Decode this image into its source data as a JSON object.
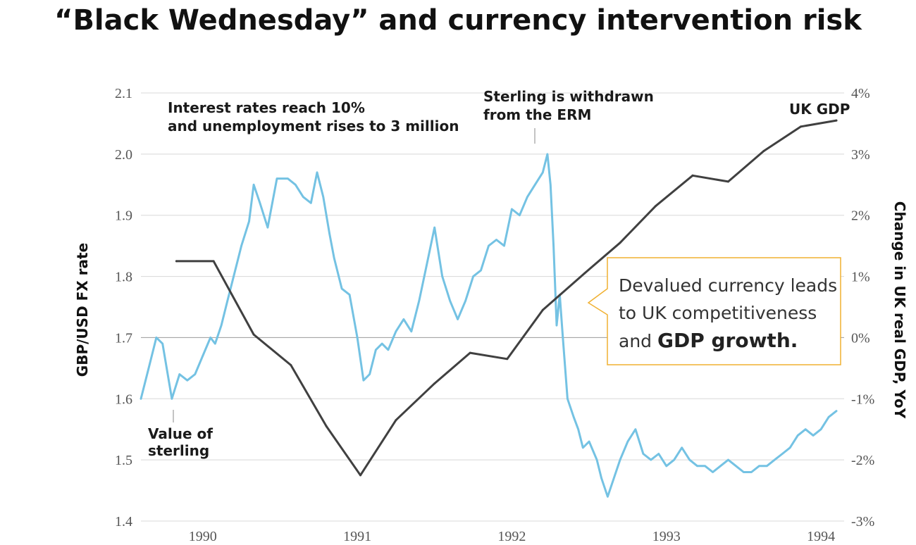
{
  "title": "“Black Wednesday” and currency intervention risk",
  "colors": {
    "fx_line": "#74c2e3",
    "gdp_line": "#404040",
    "callout_border": "#f0b030",
    "grid": "#d8d8d8",
    "zero_line": "#999999"
  },
  "annotations": {
    "interest": [
      "Interest rates reach 10%",
      "and unemployment rises to 3 million"
    ],
    "erm": [
      "Sterling is withdrawn",
      "from the ERM"
    ],
    "sterling": [
      "Value of",
      "sterling"
    ],
    "gdp_label": "UK GDP"
  },
  "callout": {
    "line1": "Devalued currency leads",
    "line2": "to UK competitiveness",
    "line3_prefix": "and ",
    "line3_bold": "GDP growth."
  },
  "chart_data": {
    "type": "line",
    "xlabel": "",
    "x_ticks": [
      "1990",
      "1991",
      "1992",
      "1993",
      "1994"
    ],
    "x_range": [
      1989.6,
      1994.15
    ],
    "left_axis": {
      "label": "GBP/USD FX rate",
      "ylim": [
        1.4,
        2.1
      ],
      "ticks": [
        "1.4",
        "1.5",
        "1.6",
        "1.7",
        "1.8",
        "1.9",
        "2.0",
        "2.1"
      ]
    },
    "right_axis": {
      "label": "Change in UK real GDP, YoY",
      "ylim": [
        -3,
        4
      ],
      "ticks": [
        "-3%",
        "-2%",
        "-1%",
        "0%",
        "1%",
        "2%",
        "3%",
        "4%"
      ]
    },
    "series": [
      {
        "axis": "left",
        "points": [
          [
            1989.6,
            1.6
          ],
          [
            1989.65,
            1.65
          ],
          [
            1989.7,
            1.7
          ],
          [
            1989.74,
            1.69
          ],
          [
            1989.78,
            1.63
          ],
          [
            1989.8,
            1.6
          ],
          [
            1989.85,
            1.64
          ],
          [
            1989.9,
            1.63
          ],
          [
            1989.95,
            1.64
          ],
          [
            1990.0,
            1.67
          ],
          [
            1990.05,
            1.7
          ],
          [
            1990.08,
            1.69
          ],
          [
            1990.12,
            1.72
          ],
          [
            1990.16,
            1.76
          ],
          [
            1990.22,
            1.82
          ],
          [
            1990.25,
            1.85
          ],
          [
            1990.3,
            1.89
          ],
          [
            1990.33,
            1.95
          ],
          [
            1990.37,
            1.92
          ],
          [
            1990.42,
            1.88
          ],
          [
            1990.48,
            1.96
          ],
          [
            1990.55,
            1.96
          ],
          [
            1990.6,
            1.95
          ],
          [
            1990.65,
            1.93
          ],
          [
            1990.7,
            1.92
          ],
          [
            1990.74,
            1.97
          ],
          [
            1990.78,
            1.93
          ],
          [
            1990.82,
            1.87
          ],
          [
            1990.85,
            1.83
          ],
          [
            1990.9,
            1.78
          ],
          [
            1990.95,
            1.77
          ],
          [
            1991.0,
            1.7
          ],
          [
            1991.04,
            1.63
          ],
          [
            1991.08,
            1.64
          ],
          [
            1991.12,
            1.68
          ],
          [
            1991.16,
            1.69
          ],
          [
            1991.2,
            1.68
          ],
          [
            1991.25,
            1.71
          ],
          [
            1991.3,
            1.73
          ],
          [
            1991.35,
            1.71
          ],
          [
            1991.4,
            1.76
          ],
          [
            1991.45,
            1.82
          ],
          [
            1991.5,
            1.88
          ],
          [
            1991.55,
            1.8
          ],
          [
            1991.6,
            1.76
          ],
          [
            1991.65,
            1.73
          ],
          [
            1991.7,
            1.76
          ],
          [
            1991.75,
            1.8
          ],
          [
            1991.8,
            1.81
          ],
          [
            1991.85,
            1.85
          ],
          [
            1991.9,
            1.86
          ],
          [
            1991.95,
            1.85
          ],
          [
            1992.0,
            1.91
          ],
          [
            1992.05,
            1.9
          ],
          [
            1992.1,
            1.93
          ],
          [
            1992.15,
            1.95
          ],
          [
            1992.2,
            1.97
          ],
          [
            1992.23,
            2.0
          ],
          [
            1992.25,
            1.95
          ],
          [
            1992.27,
            1.85
          ],
          [
            1992.29,
            1.72
          ],
          [
            1992.31,
            1.77
          ],
          [
            1992.33,
            1.7
          ],
          [
            1992.36,
            1.6
          ],
          [
            1992.4,
            1.57
          ],
          [
            1992.43,
            1.55
          ],
          [
            1992.46,
            1.52
          ],
          [
            1992.5,
            1.53
          ],
          [
            1992.55,
            1.5
          ],
          [
            1992.58,
            1.47
          ],
          [
            1992.62,
            1.44
          ],
          [
            1992.66,
            1.47
          ],
          [
            1992.7,
            1.5
          ],
          [
            1992.75,
            1.53
          ],
          [
            1992.8,
            1.55
          ],
          [
            1992.85,
            1.51
          ],
          [
            1992.9,
            1.5
          ],
          [
            1992.95,
            1.51
          ],
          [
            1993.0,
            1.49
          ],
          [
            1993.05,
            1.5
          ],
          [
            1993.1,
            1.52
          ],
          [
            1993.15,
            1.5
          ],
          [
            1993.2,
            1.49
          ],
          [
            1993.25,
            1.49
          ],
          [
            1993.3,
            1.48
          ],
          [
            1993.35,
            1.49
          ],
          [
            1993.4,
            1.5
          ],
          [
            1993.45,
            1.49
          ],
          [
            1993.5,
            1.48
          ],
          [
            1993.55,
            1.48
          ],
          [
            1993.6,
            1.49
          ],
          [
            1993.65,
            1.49
          ],
          [
            1993.7,
            1.5
          ],
          [
            1993.75,
            1.51
          ],
          [
            1993.8,
            1.52
          ],
          [
            1993.85,
            1.54
          ],
          [
            1993.9,
            1.55
          ],
          [
            1993.95,
            1.54
          ],
          [
            1994.0,
            1.55
          ],
          [
            1994.05,
            1.57
          ],
          [
            1994.1,
            1.58
          ]
        ]
      },
      {
        "name": "UK GDP",
        "axis": "right",
        "points": [
          [
            1989.83,
            1.25
          ],
          [
            1990.07,
            1.25
          ],
          [
            1990.33,
            0.05
          ],
          [
            1990.57,
            -0.45
          ],
          [
            1990.8,
            -1.45
          ],
          [
            1991.02,
            -2.25
          ],
          [
            1991.25,
            -1.35
          ],
          [
            1991.5,
            -0.75
          ],
          [
            1991.73,
            -0.25
          ],
          [
            1991.97,
            -0.35
          ],
          [
            1992.2,
            0.45
          ],
          [
            1992.47,
            1.05
          ],
          [
            1992.7,
            1.55
          ],
          [
            1992.93,
            2.15
          ],
          [
            1993.17,
            2.65
          ],
          [
            1993.4,
            2.55
          ],
          [
            1993.63,
            3.05
          ],
          [
            1993.87,
            3.45
          ],
          [
            1994.1,
            3.55
          ]
        ]
      }
    ]
  }
}
